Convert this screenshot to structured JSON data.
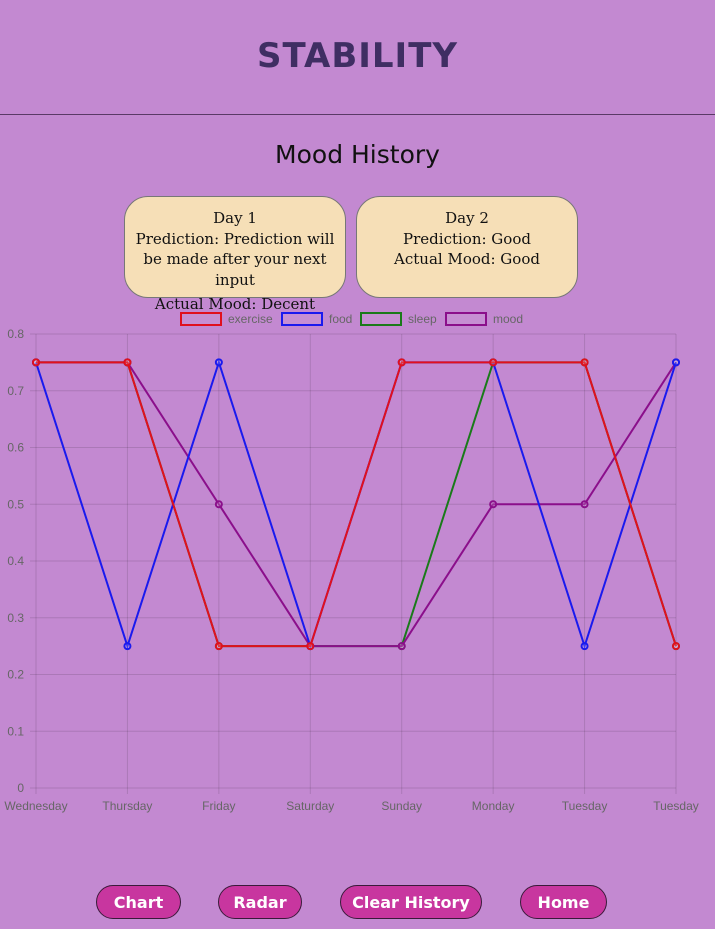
{
  "header": {
    "title": "STABILITY"
  },
  "section": {
    "title": "Mood History"
  },
  "cards": [
    {
      "day": "Day 1",
      "prediction": "Prediction: Prediction will be made after your next input",
      "actual": "Actual Mood: Decent"
    },
    {
      "day": "Day 2",
      "prediction": "Prediction: Good",
      "actual": "Actual Mood: Good"
    }
  ],
  "chart_data": {
    "type": "line",
    "categories": [
      "Wednesday",
      "Thursday",
      "Friday",
      "Saturday",
      "Sunday",
      "Monday",
      "Tuesday",
      "Tuesday"
    ],
    "ylim": [
      0,
      0.8
    ],
    "yticks": [
      "0",
      "0.1",
      "0.2",
      "0.3",
      "0.4",
      "0.5",
      "0.6",
      "0.7",
      "0.8"
    ],
    "grid": true,
    "legend": "top-center",
    "series": [
      {
        "name": "sleep",
        "color": "#1a7a1a",
        "values": [
          0.75,
          0.75,
          0.25,
          0.25,
          0.25,
          0.75,
          0.75,
          0.25
        ]
      },
      {
        "name": "mood",
        "color": "#8b0f8b",
        "values": [
          0.75,
          0.75,
          0.5,
          0.25,
          0.25,
          0.5,
          0.5,
          0.75
        ]
      },
      {
        "name": "food",
        "color": "#1a1aee",
        "values": [
          0.75,
          0.25,
          0.75,
          0.25,
          0.75,
          0.75,
          0.25,
          0.75
        ]
      },
      {
        "name": "exercise",
        "color": "#e0101e",
        "values": [
          0.75,
          0.75,
          0.25,
          0.25,
          0.75,
          0.75,
          0.75,
          0.25
        ]
      }
    ],
    "legend_order": [
      "exercise",
      "food",
      "sleep",
      "mood"
    ]
  },
  "buttons": {
    "chart": "Chart",
    "radar": "Radar",
    "clear": "Clear History",
    "home": "Home"
  }
}
